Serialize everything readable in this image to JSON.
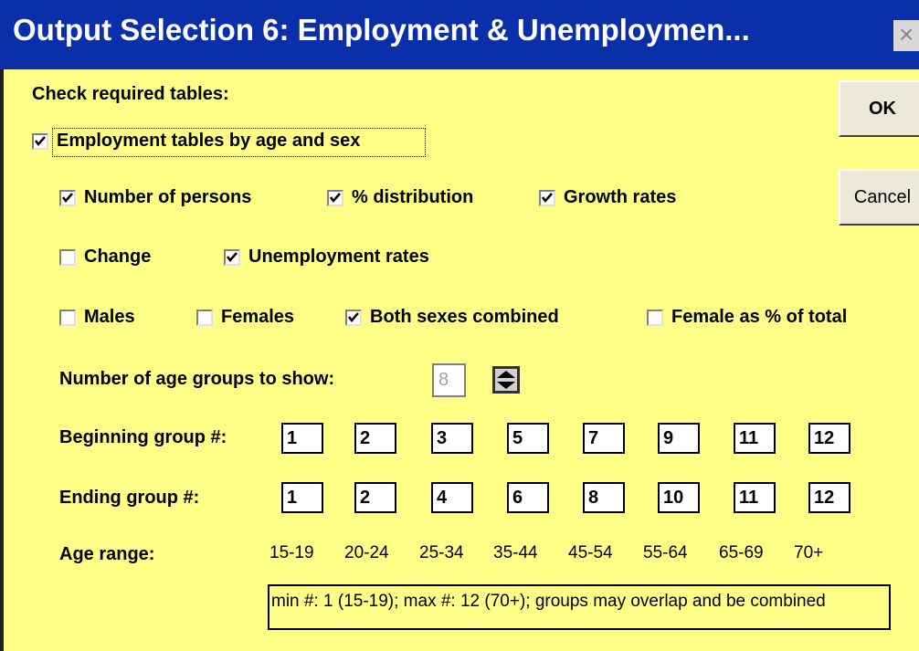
{
  "title": "Output Selection 6: Employment & Unemploymen...",
  "close_button": "×",
  "instruction": "Check required tables:",
  "buttons": {
    "ok": "OK",
    "cancel": "Cancel"
  },
  "main_option": {
    "label": "Employment tables by age and sex",
    "checked": true
  },
  "measures": [
    {
      "label": "Number of persons",
      "checked": true
    },
    {
      "label": "% distribution",
      "checked": true
    },
    {
      "label": "Growth rates",
      "checked": true
    }
  ],
  "types": [
    {
      "label": "Change",
      "checked": false
    },
    {
      "label": "Unemployment rates",
      "checked": true
    }
  ],
  "sexes": [
    {
      "label": "Males",
      "checked": false
    },
    {
      "label": "Females",
      "checked": false
    },
    {
      "label": "Both sexes combined",
      "checked": true
    },
    {
      "label": "Female as % of total",
      "checked": false
    }
  ],
  "age_groups": {
    "label": "Number of age groups to show:",
    "value": "8"
  },
  "beginning": {
    "label": "Beginning group #:",
    "values": [
      "1",
      "2",
      "3",
      "5",
      "7",
      "9",
      "11",
      "12"
    ]
  },
  "ending": {
    "label": "Ending group #:",
    "values": [
      "1",
      "2",
      "4",
      "6",
      "8",
      "10",
      "11",
      "12"
    ]
  },
  "age_range": {
    "label": "Age range:",
    "values": [
      "15-19",
      "20-24",
      "25-34",
      "35-44",
      "45-54",
      "55-64",
      "65-69",
      "70+"
    ]
  },
  "note": "min #: 1 (15-19);  max #: 12 (70+);  groups may overlap and be combined"
}
